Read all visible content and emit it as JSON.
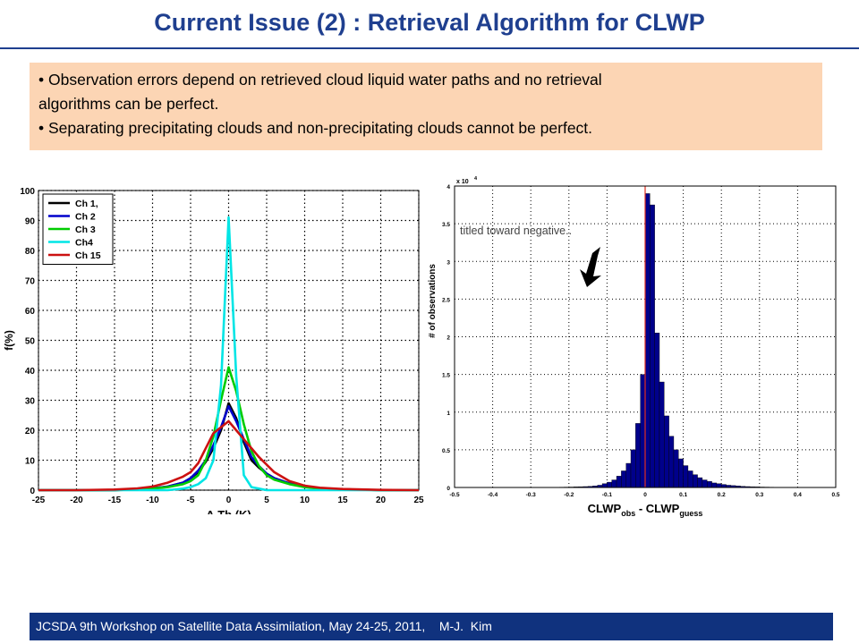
{
  "title": "Current Issue (2) : Retrieval Algorithm for CLWP",
  "bullets": [
    "• Observation errors depend on retrieved cloud liquid water paths and no retrieval",
    "algorithms can be perfect.",
    "•  Separating precipitating clouds and non-precipitating clouds cannot be perfect."
  ],
  "footer": "JCSDA 9th Workshop on Satellite Data Assimilation, May 24-25, 2011,    M-J.  Kim",
  "chart_data": [
    {
      "type": "line",
      "xlabel": "Δ Tb (K)",
      "ylabel": "f(%)",
      "xlim": [
        -25,
        25
      ],
      "ylim": [
        0,
        100
      ],
      "xticks": [
        -25,
        -20,
        -15,
        -10,
        -5,
        0,
        5,
        10,
        15,
        20,
        25
      ],
      "yticks": [
        0,
        10,
        20,
        30,
        40,
        50,
        60,
        70,
        80,
        90,
        100
      ],
      "grid": true,
      "legend_position": "top-left",
      "x": [
        -25,
        -20,
        -15,
        -12,
        -10,
        -8,
        -6,
        -5,
        -4,
        -3,
        -2,
        -1,
        0,
        1,
        2,
        3,
        4,
        5,
        6,
        8,
        10,
        12,
        15,
        20,
        25
      ],
      "series": [
        {
          "name": "Ch 1,",
          "color": "#000000",
          "values": [
            0,
            0,
            0,
            0.3,
            0.6,
            1.2,
            2.5,
            4,
            6,
            9.5,
            14,
            20,
            29,
            24,
            16,
            10,
            7.5,
            5.5,
            4,
            2.2,
            1.2,
            0.5,
            0.3,
            0,
            0
          ]
        },
        {
          "name": "Ch 2",
          "color": "#0000cc",
          "values": [
            0,
            0,
            0,
            0.3,
            0.6,
            1.2,
            2.5,
            4,
            6.5,
            10,
            15,
            21,
            28,
            23,
            17,
            11,
            8,
            5.5,
            4,
            2.2,
            1.2,
            0.5,
            0.3,
            0,
            0
          ]
        },
        {
          "name": "Ch 3",
          "color": "#00cc00",
          "values": [
            0,
            0,
            0,
            0.2,
            0.5,
            1,
            2,
            3,
            5,
            10,
            18,
            30,
            41,
            33,
            22,
            13,
            8,
            5,
            3.5,
            2,
            1,
            0.5,
            0.2,
            0,
            0
          ]
        },
        {
          "name": "Ch4",
          "color": "#00e5e5",
          "values": [
            0,
            0,
            0,
            0,
            0,
            0,
            0.5,
            1,
            2,
            4,
            10,
            35,
            91,
            38,
            5,
            1,
            0.5,
            0,
            0,
            0,
            0,
            0,
            0,
            0,
            0
          ]
        },
        {
          "name": "Ch 15",
          "color": "#cc1111",
          "values": [
            0,
            0,
            0.2,
            0.6,
            1.2,
            2.5,
            4.5,
            6,
            9,
            14,
            19,
            21,
            23,
            20,
            17,
            14,
            11,
            8.5,
            6,
            3,
            1.5,
            0.8,
            0.4,
            0.1,
            0
          ]
        }
      ]
    },
    {
      "type": "bar",
      "xlabel_main": "CLWP",
      "xlabel_sub1": "obs",
      "xlabel_mid": " - CLWP",
      "xlabel_sub2": "guess",
      "ylabel": "# of observations",
      "multiplier_base": "x 10",
      "multiplier_exp": "4",
      "annotation": "titled toward negative..",
      "xlim": [
        -0.5,
        0.5
      ],
      "ylim": [
        0,
        4
      ],
      "xticks": [
        -0.5,
        -0.4,
        -0.3,
        -0.2,
        -0.1,
        0,
        0.1,
        0.2,
        0.3,
        0.4,
        0.5
      ],
      "yticks": [
        0,
        0.5,
        1,
        1.5,
        2,
        2.5,
        3,
        3.5,
        4
      ],
      "grid": true,
      "bar_color": "#00008b",
      "reference_line_x": 0,
      "bin_width": 0.0125,
      "bin_start": -0.25,
      "values": [
        0.002,
        0.003,
        0.004,
        0.005,
        0.006,
        0.008,
        0.01,
        0.012,
        0.015,
        0.02,
        0.03,
        0.05,
        0.07,
        0.1,
        0.15,
        0.22,
        0.32,
        0.5,
        0.85,
        1.5,
        3.9,
        3.75,
        2.05,
        1.4,
        0.95,
        0.68,
        0.5,
        0.38,
        0.29,
        0.22,
        0.17,
        0.13,
        0.1,
        0.08,
        0.06,
        0.05,
        0.04,
        0.03,
        0.025,
        0.02,
        0.015,
        0.012,
        0.01,
        0.008,
        0.006,
        0.005,
        0.004,
        0.003,
        0.002
      ]
    }
  ]
}
